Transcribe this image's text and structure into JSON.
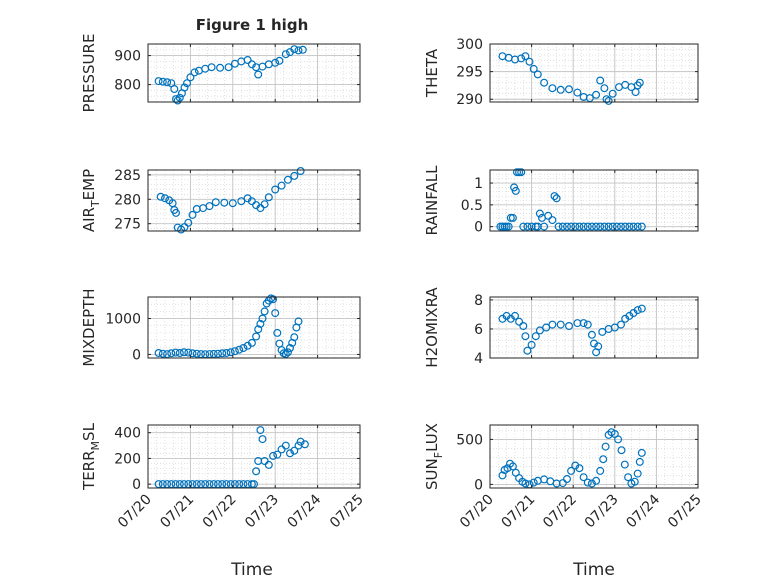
{
  "figure": {
    "title": "Figure 1 high",
    "xlabel": "Time"
  },
  "chart_data": [
    {
      "type": "scatter",
      "ylabel": "PRESSURE",
      "ylim": [
        740,
        940
      ],
      "yticks": [
        800,
        900
      ],
      "xlim": [
        0,
        5
      ],
      "xticks": [
        "07/20",
        "07/21",
        "07/22",
        "07/23",
        "07/24",
        "07/25"
      ],
      "grid": true,
      "color": "#0072bd",
      "points": [
        [
          0.25,
          812
        ],
        [
          0.35,
          810
        ],
        [
          0.45,
          808
        ],
        [
          0.55,
          805
        ],
        [
          0.62,
          785
        ],
        [
          0.66,
          750
        ],
        [
          0.7,
          745
        ],
        [
          0.75,
          755
        ],
        [
          0.8,
          770
        ],
        [
          0.86,
          790
        ],
        [
          0.92,
          805
        ],
        [
          1.0,
          825
        ],
        [
          1.1,
          842
        ],
        [
          1.2,
          848
        ],
        [
          1.35,
          855
        ],
        [
          1.5,
          860
        ],
        [
          1.7,
          858
        ],
        [
          1.9,
          860
        ],
        [
          2.05,
          872
        ],
        [
          2.2,
          880
        ],
        [
          2.35,
          885
        ],
        [
          2.45,
          870
        ],
        [
          2.55,
          860
        ],
        [
          2.6,
          835
        ],
        [
          2.7,
          862
        ],
        [
          2.85,
          870
        ],
        [
          3.0,
          875
        ],
        [
          3.1,
          882
        ],
        [
          3.25,
          905
        ],
        [
          3.35,
          912
        ],
        [
          3.45,
          922
        ],
        [
          3.55,
          918
        ],
        [
          3.65,
          920
        ]
      ]
    },
    {
      "type": "scatter",
      "ylabel": "THETA",
      "ylim": [
        289.5,
        300
      ],
      "yticks": [
        290,
        295,
        300
      ],
      "xlim": [
        0,
        5
      ],
      "xticks": [
        "07/20",
        "07/21",
        "07/22",
        "07/23",
        "07/24",
        "07/25"
      ],
      "grid": true,
      "color": "#0072bd",
      "points": [
        [
          0.3,
          297.8
        ],
        [
          0.45,
          297.5
        ],
        [
          0.6,
          297.2
        ],
        [
          0.75,
          297.4
        ],
        [
          0.85,
          297.8
        ],
        [
          0.95,
          296.8
        ],
        [
          1.05,
          295.5
        ],
        [
          1.15,
          294.5
        ],
        [
          1.3,
          293.0
        ],
        [
          1.5,
          292.0
        ],
        [
          1.7,
          291.7
        ],
        [
          1.9,
          291.8
        ],
        [
          2.1,
          291.2
        ],
        [
          2.25,
          290.4
        ],
        [
          2.4,
          290.2
        ],
        [
          2.55,
          290.8
        ],
        [
          2.65,
          293.4
        ],
        [
          2.75,
          292.0
        ],
        [
          2.8,
          290.0
        ],
        [
          2.85,
          289.7
        ],
        [
          2.95,
          291.0
        ],
        [
          3.1,
          292.2
        ],
        [
          3.25,
          292.6
        ],
        [
          3.4,
          292.2
        ],
        [
          3.5,
          291.3
        ],
        [
          3.55,
          292.5
        ],
        [
          3.6,
          293.0
        ]
      ]
    },
    {
      "type": "scatter",
      "ylabel": "AIR_TEMP",
      "ylim": [
        273.5,
        286
      ],
      "yticks": [
        275,
        280,
        285
      ],
      "xlim": [
        0,
        5
      ],
      "xticks": [
        "07/20",
        "07/21",
        "07/22",
        "07/23",
        "07/24",
        "07/25"
      ],
      "grid": true,
      "color": "#0072bd",
      "points": [
        [
          0.3,
          280.5
        ],
        [
          0.4,
          280.2
        ],
        [
          0.5,
          279.8
        ],
        [
          0.58,
          279.2
        ],
        [
          0.62,
          277.8
        ],
        [
          0.66,
          277.2
        ],
        [
          0.7,
          274.2
        ],
        [
          0.78,
          273.8
        ],
        [
          0.86,
          274.3
        ],
        [
          0.95,
          275.2
        ],
        [
          1.05,
          276.8
        ],
        [
          1.15,
          278.0
        ],
        [
          1.3,
          278.2
        ],
        [
          1.45,
          278.6
        ],
        [
          1.6,
          279.4
        ],
        [
          1.8,
          279.3
        ],
        [
          2.0,
          279.2
        ],
        [
          2.2,
          279.6
        ],
        [
          2.35,
          280.2
        ],
        [
          2.45,
          279.6
        ],
        [
          2.55,
          278.8
        ],
        [
          2.65,
          278.2
        ],
        [
          2.75,
          279.0
        ],
        [
          2.85,
          280.4
        ],
        [
          3.0,
          282.0
        ],
        [
          3.15,
          282.8
        ],
        [
          3.3,
          284.0
        ],
        [
          3.45,
          284.8
        ],
        [
          3.6,
          285.8
        ]
      ]
    },
    {
      "type": "scatter",
      "ylabel": "RAINFALL",
      "ylim": [
        -0.1,
        1.3
      ],
      "yticks": [
        0,
        0.5,
        1
      ],
      "xlim": [
        0,
        5
      ],
      "xticks": [
        "07/20",
        "07/21",
        "07/22",
        "07/23",
        "07/24",
        "07/25"
      ],
      "grid": true,
      "color": "#0072bd",
      "points": [
        [
          0.25,
          0
        ],
        [
          0.3,
          0
        ],
        [
          0.35,
          0
        ],
        [
          0.4,
          0
        ],
        [
          0.45,
          0
        ],
        [
          0.5,
          0.2
        ],
        [
          0.55,
          0.2
        ],
        [
          0.58,
          0.9
        ],
        [
          0.62,
          0.82
        ],
        [
          0.65,
          1.25
        ],
        [
          0.7,
          1.25
        ],
        [
          0.75,
          1.25
        ],
        [
          0.8,
          0
        ],
        [
          0.9,
          0
        ],
        [
          1.0,
          0
        ],
        [
          1.1,
          0
        ],
        [
          1.15,
          0
        ],
        [
          1.2,
          0.3
        ],
        [
          1.25,
          0.2
        ],
        [
          1.3,
          0
        ],
        [
          1.4,
          0.25
        ],
        [
          1.5,
          0.15
        ],
        [
          1.55,
          0.7
        ],
        [
          1.6,
          0.65
        ],
        [
          1.65,
          0
        ],
        [
          1.75,
          0
        ],
        [
          1.85,
          0
        ],
        [
          1.95,
          0
        ],
        [
          2.05,
          0
        ],
        [
          2.15,
          0
        ],
        [
          2.25,
          0
        ],
        [
          2.35,
          0
        ],
        [
          2.45,
          0
        ],
        [
          2.55,
          0
        ],
        [
          2.65,
          0
        ],
        [
          2.75,
          0
        ],
        [
          2.85,
          0
        ],
        [
          2.95,
          0
        ],
        [
          3.05,
          0
        ],
        [
          3.15,
          0
        ],
        [
          3.25,
          0
        ],
        [
          3.35,
          0
        ],
        [
          3.45,
          0
        ],
        [
          3.55,
          0
        ],
        [
          3.65,
          0
        ]
      ]
    },
    {
      "type": "scatter",
      "ylabel": "MIXDEPTH",
      "ylim": [
        -100,
        1600
      ],
      "yticks": [
        0,
        1000
      ],
      "xlim": [
        0,
        5
      ],
      "xticks": [
        "07/20",
        "07/21",
        "07/22",
        "07/23",
        "07/24",
        "07/25"
      ],
      "grid": true,
      "color": "#0072bd",
      "points": [
        [
          0.25,
          40
        ],
        [
          0.35,
          20
        ],
        [
          0.45,
          10
        ],
        [
          0.55,
          30
        ],
        [
          0.65,
          50
        ],
        [
          0.75,
          40
        ],
        [
          0.85,
          60
        ],
        [
          0.95,
          50
        ],
        [
          1.05,
          30
        ],
        [
          1.15,
          20
        ],
        [
          1.25,
          10
        ],
        [
          1.35,
          5
        ],
        [
          1.45,
          10
        ],
        [
          1.55,
          15
        ],
        [
          1.65,
          20
        ],
        [
          1.75,
          30
        ],
        [
          1.85,
          40
        ],
        [
          1.95,
          60
        ],
        [
          2.05,
          90
        ],
        [
          2.15,
          130
        ],
        [
          2.25,
          180
        ],
        [
          2.35,
          240
        ],
        [
          2.45,
          320
        ],
        [
          2.55,
          500
        ],
        [
          2.6,
          700
        ],
        [
          2.65,
          850
        ],
        [
          2.7,
          1000
        ],
        [
          2.75,
          1200
        ],
        [
          2.8,
          1420
        ],
        [
          2.85,
          1500
        ],
        [
          2.9,
          1560
        ],
        [
          2.95,
          1540
        ],
        [
          3.0,
          1150
        ],
        [
          3.05,
          600
        ],
        [
          3.1,
          300
        ],
        [
          3.15,
          120
        ],
        [
          3.2,
          30
        ],
        [
          3.25,
          10
        ],
        [
          3.3,
          60
        ],
        [
          3.35,
          180
        ],
        [
          3.4,
          320
        ],
        [
          3.45,
          480
        ],
        [
          3.5,
          750
        ],
        [
          3.55,
          920
        ]
      ]
    },
    {
      "type": "scatter",
      "ylabel": "H2OMIXRA",
      "ylim": [
        4,
        8.2
      ],
      "yticks": [
        4,
        6,
        8
      ],
      "xlim": [
        0,
        5
      ],
      "xticks": [
        "07/20",
        "07/21",
        "07/22",
        "07/23",
        "07/24",
        "07/25"
      ],
      "grid": true,
      "color": "#0072bd",
      "points": [
        [
          0.3,
          6.7
        ],
        [
          0.4,
          6.9
        ],
        [
          0.5,
          6.7
        ],
        [
          0.6,
          6.9
        ],
        [
          0.7,
          6.5
        ],
        [
          0.8,
          6.2
        ],
        [
          0.85,
          5.5
        ],
        [
          0.9,
          4.5
        ],
        [
          1.0,
          4.9
        ],
        [
          1.1,
          5.5
        ],
        [
          1.2,
          5.9
        ],
        [
          1.35,
          6.1
        ],
        [
          1.5,
          6.3
        ],
        [
          1.7,
          6.3
        ],
        [
          1.9,
          6.2
        ],
        [
          2.1,
          6.4
        ],
        [
          2.25,
          6.4
        ],
        [
          2.35,
          6.3
        ],
        [
          2.45,
          5.6
        ],
        [
          2.5,
          5.0
        ],
        [
          2.55,
          4.4
        ],
        [
          2.6,
          4.8
        ],
        [
          2.7,
          5.8
        ],
        [
          2.85,
          6.0
        ],
        [
          3.0,
          6.1
        ],
        [
          3.15,
          6.3
        ],
        [
          3.25,
          6.7
        ],
        [
          3.35,
          6.9
        ],
        [
          3.45,
          7.1
        ],
        [
          3.55,
          7.3
        ],
        [
          3.65,
          7.4
        ]
      ]
    },
    {
      "type": "scatter",
      "ylabel": "TERR_MSL",
      "ylim": [
        -30,
        460
      ],
      "yticks": [
        0,
        200,
        400
      ],
      "xlim": [
        0,
        5
      ],
      "xticks": [
        "07/20",
        "07/21",
        "07/22",
        "07/23",
        "07/24",
        "07/25"
      ],
      "grid": true,
      "color": "#0072bd",
      "points": [
        [
          0.25,
          0
        ],
        [
          0.35,
          0
        ],
        [
          0.45,
          0
        ],
        [
          0.55,
          0
        ],
        [
          0.65,
          0
        ],
        [
          0.75,
          0
        ],
        [
          0.85,
          0
        ],
        [
          0.95,
          0
        ],
        [
          1.05,
          0
        ],
        [
          1.15,
          0
        ],
        [
          1.25,
          0
        ],
        [
          1.35,
          0
        ],
        [
          1.45,
          0
        ],
        [
          1.55,
          0
        ],
        [
          1.65,
          0
        ],
        [
          1.75,
          0
        ],
        [
          1.85,
          0
        ],
        [
          1.95,
          0
        ],
        [
          2.05,
          0
        ],
        [
          2.15,
          0
        ],
        [
          2.25,
          0
        ],
        [
          2.35,
          0
        ],
        [
          2.45,
          0
        ],
        [
          2.5,
          0
        ],
        [
          2.55,
          100
        ],
        [
          2.6,
          180
        ],
        [
          2.65,
          420
        ],
        [
          2.7,
          350
        ],
        [
          2.75,
          180
        ],
        [
          2.85,
          150
        ],
        [
          2.95,
          220
        ],
        [
          3.05,
          230
        ],
        [
          3.15,
          270
        ],
        [
          3.25,
          300
        ],
        [
          3.35,
          240
        ],
        [
          3.45,
          260
        ],
        [
          3.55,
          300
        ],
        [
          3.6,
          330
        ],
        [
          3.7,
          310
        ]
      ]
    },
    {
      "type": "scatter",
      "ylabel": "SUN_FLUX",
      "ylim": [
        -40,
        660
      ],
      "yticks": [
        0,
        500
      ],
      "xlim": [
        0,
        5
      ],
      "xticks": [
        "07/20",
        "07/21",
        "07/22",
        "07/23",
        "07/24",
        "07/25"
      ],
      "grid": true,
      "color": "#0072bd",
      "points": [
        [
          0.3,
          100
        ],
        [
          0.35,
          160
        ],
        [
          0.42,
          180
        ],
        [
          0.48,
          230
        ],
        [
          0.55,
          200
        ],
        [
          0.62,
          130
        ],
        [
          0.7,
          70
        ],
        [
          0.78,
          30
        ],
        [
          0.85,
          10
        ],
        [
          0.95,
          0
        ],
        [
          1.05,
          20
        ],
        [
          1.15,
          40
        ],
        [
          1.3,
          55
        ],
        [
          1.45,
          35
        ],
        [
          1.6,
          10
        ],
        [
          1.75,
          15
        ],
        [
          1.85,
          60
        ],
        [
          1.95,
          150
        ],
        [
          2.05,
          210
        ],
        [
          2.15,
          180
        ],
        [
          2.25,
          80
        ],
        [
          2.35,
          20
        ],
        [
          2.45,
          10
        ],
        [
          2.55,
          40
        ],
        [
          2.65,
          150
        ],
        [
          2.72,
          280
        ],
        [
          2.78,
          420
        ],
        [
          2.85,
          550
        ],
        [
          2.92,
          580
        ],
        [
          3.0,
          560
        ],
        [
          3.08,
          500
        ],
        [
          3.16,
          380
        ],
        [
          3.24,
          220
        ],
        [
          3.32,
          80
        ],
        [
          3.4,
          10
        ],
        [
          3.48,
          30
        ],
        [
          3.55,
          120
        ],
        [
          3.6,
          250
        ],
        [
          3.65,
          350
        ]
      ]
    }
  ]
}
